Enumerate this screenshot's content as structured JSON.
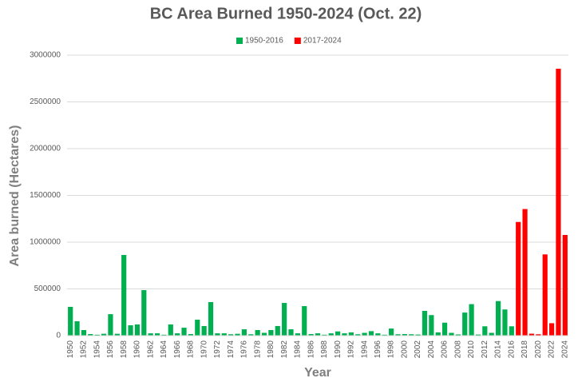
{
  "chart_data": {
    "type": "bar",
    "title": "BC Area Burned 1950-2024 (Oct. 22)",
    "x_label": "Year",
    "y_label": "Area burned (Hectares)",
    "categories": [
      "1950",
      null,
      "1952",
      null,
      "1954",
      null,
      "1956",
      null,
      "1958",
      null,
      "1960",
      null,
      "1962",
      null,
      "1964",
      null,
      "1966",
      null,
      "1968",
      null,
      "1970",
      null,
      "1972",
      null,
      "1974",
      null,
      "1976",
      null,
      "1978",
      null,
      "1980",
      null,
      "1982",
      null,
      "1984",
      null,
      "1986",
      null,
      "1988",
      null,
      "1990",
      null,
      "1992",
      null,
      "1994",
      null,
      "1996",
      null,
      "1998",
      null,
      "2000",
      null,
      "2002",
      null,
      "2004",
      null,
      "2006",
      null,
      "2008",
      null,
      "2010",
      null,
      "2012",
      null,
      "2014",
      null,
      "2016",
      null,
      "2018",
      null,
      "2020",
      null,
      "2022",
      null,
      "2024"
    ],
    "series": [
      {
        "name": "1950-2016",
        "color": "#00b050",
        "values": [
          308000,
          154000,
          60000,
          17000,
          10000,
          20000,
          230000,
          20000,
          863000,
          111000,
          120000,
          487000,
          25000,
          25000,
          10000,
          120000,
          25000,
          85000,
          17000,
          171000,
          103000,
          359000,
          25000,
          25000,
          15000,
          20000,
          68000,
          15000,
          60000,
          30000,
          60000,
          103000,
          350000,
          68000,
          25000,
          316000,
          17000,
          25000,
          10000,
          25000,
          45000,
          25000,
          35000,
          15000,
          30000,
          48000,
          25000,
          10000,
          76000,
          15000,
          17000,
          15000,
          12000,
          265000,
          220000,
          35000,
          139000,
          30000,
          13000,
          247000,
          337000,
          12000,
          100000,
          30000,
          370000,
          280000,
          100000,
          null,
          null,
          null,
          null,
          null,
          null,
          null,
          null
        ]
      },
      {
        "name": "2017-2024",
        "color": "#ff0000",
        "values": [
          null,
          null,
          null,
          null,
          null,
          null,
          null,
          null,
          null,
          null,
          null,
          null,
          null,
          null,
          null,
          null,
          null,
          null,
          null,
          null,
          null,
          null,
          null,
          null,
          null,
          null,
          null,
          null,
          null,
          null,
          null,
          null,
          null,
          null,
          null,
          null,
          null,
          null,
          null,
          null,
          null,
          null,
          null,
          null,
          null,
          null,
          null,
          null,
          null,
          null,
          null,
          null,
          null,
          null,
          null,
          null,
          null,
          null,
          null,
          null,
          null,
          null,
          null,
          null,
          null,
          null,
          null,
          1216000,
          1354000,
          21000,
          15000,
          869000,
          133000,
          2855000,
          1077000
        ]
      }
    ],
    "ylim": [
      0,
      3000000
    ],
    "yticks": [
      0,
      500000,
      1000000,
      1500000,
      2000000,
      2500000,
      3000000
    ],
    "grid": true,
    "legend": "top"
  }
}
